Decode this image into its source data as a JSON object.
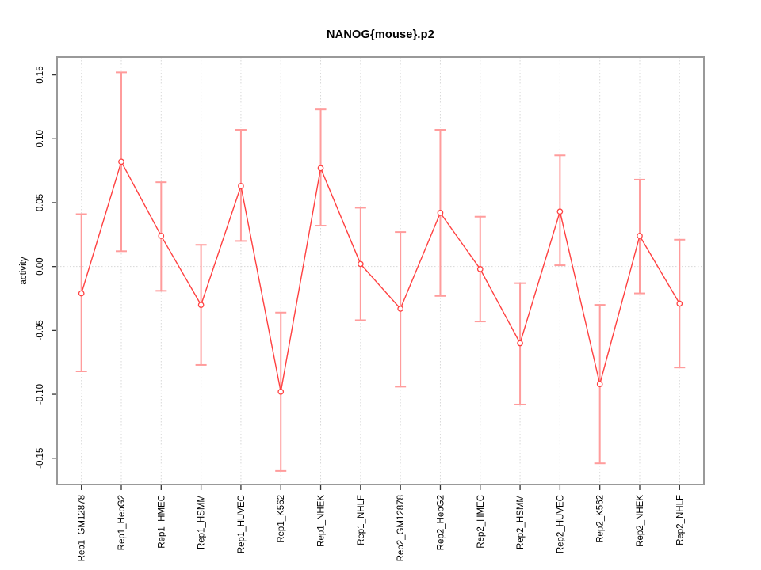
{
  "title": "NANOG{mouse}.p2",
  "chart_data": {
    "type": "line",
    "title": "NANOG{mouse}.p2",
    "xlabel": "",
    "ylabel": "activity",
    "ylim": [
      -0.1706,
      0.164
    ],
    "yticks": [
      -0.15,
      -0.1,
      -0.05,
      0.0,
      0.05,
      0.1,
      0.15
    ],
    "grid": "vertical dotted line at each category; horizontal dotted line at y=0; no legend",
    "legend_position": "none",
    "categories": [
      "Rep1_GM12878",
      "Rep1_HepG2",
      "Rep1_HMEC",
      "Rep1_HSMM",
      "Rep1_HUVEC",
      "Rep1_K562",
      "Rep1_NHEK",
      "Rep1_NHLF",
      "Rep2_GM12878",
      "Rep2_HepG2",
      "Rep2_HMEC",
      "Rep2_HSMM",
      "Rep2_HUVEC",
      "Rep2_K562",
      "Rep2_NHEK",
      "Rep2_NHLF"
    ],
    "series": [
      {
        "name": "activity",
        "marker": "open-circle",
        "values": [
          -0.021,
          0.082,
          0.024,
          -0.03,
          0.063,
          -0.098,
          0.077,
          0.002,
          -0.033,
          0.042,
          -0.002,
          -0.06,
          0.043,
          -0.092,
          0.024,
          -0.029
        ],
        "error_upper": [
          0.041,
          0.152,
          0.066,
          0.017,
          0.107,
          -0.036,
          0.123,
          0.046,
          0.027,
          0.107,
          0.039,
          -0.013,
          0.087,
          -0.03,
          0.068,
          0.021
        ],
        "error_lower": [
          -0.082,
          0.012,
          -0.019,
          -0.077,
          0.02,
          -0.16,
          0.032,
          -0.042,
          -0.094,
          -0.023,
          -0.043,
          -0.108,
          0.001,
          -0.154,
          -0.021,
          -0.079
        ]
      }
    ]
  },
  "colors": {
    "series_line": "#ff4040",
    "marker_stroke": "#ff4040",
    "error_bar": "#ff9c9c",
    "plot_border": "#999999",
    "gridline": "#d8d8d8",
    "tick": "#333333",
    "text": "#000000",
    "background": "#ffffff"
  }
}
